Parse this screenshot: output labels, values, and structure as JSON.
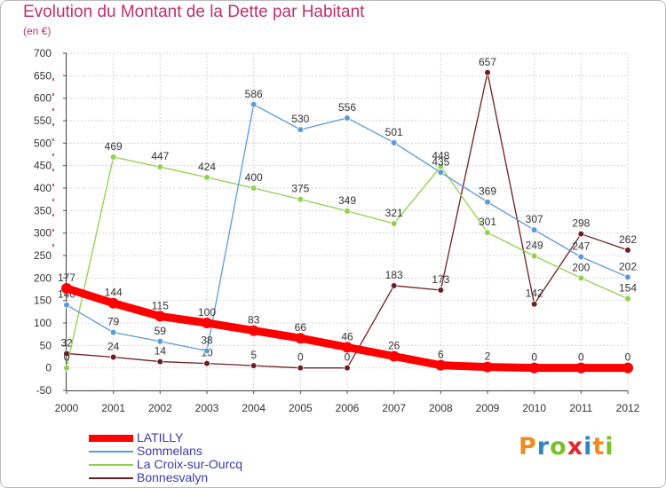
{
  "title": "Evolution du Montant de la Dette par Habitant",
  "subtitle": "(en €)",
  "brand": {
    "text": "Proxiti",
    "colors": [
      "#f08b22",
      "#2e86c1",
      "#7cbf28",
      "#e3272e",
      "#2e86c1",
      "#f08b22",
      "#7cbf28"
    ]
  },
  "chart_data": {
    "type": "line",
    "title": "Evolution du Montant de la Dette par Habitant",
    "subtitle": "(en €)",
    "x": [
      "2000",
      "2001",
      "2002",
      "2003",
      "2004",
      "2005",
      "2006",
      "2007",
      "2008",
      "2009",
      "2010",
      "2011",
      "2012"
    ],
    "ylim": [
      -50,
      700
    ],
    "yticks": [
      -50,
      0,
      50,
      100,
      150,
      200,
      250,
      300,
      350,
      400,
      450,
      500,
      550,
      600,
      650,
      700
    ],
    "grid": true,
    "legend_position": "bottom-left",
    "series": [
      {
        "name": "LATILLY",
        "color": "#ff0000",
        "values": [
          177,
          144,
          115,
          100,
          83,
          66,
          46,
          26,
          6,
          2,
          0,
          0,
          0
        ],
        "labels": [
          "177",
          "144",
          "115",
          "100",
          "83",
          "66",
          "46",
          "26",
          "6",
          "2",
          "0",
          "0",
          "0"
        ]
      },
      {
        "name": "Sommelans",
        "color": "#5b9bd5",
        "values": [
          140,
          79,
          59,
          38,
          586,
          530,
          556,
          501,
          435,
          369,
          307,
          247,
          202
        ],
        "labels": [
          "140",
          "79",
          "59",
          "38",
          "586",
          "530",
          "556",
          "501",
          "435",
          "369",
          "307",
          "247",
          "202"
        ]
      },
      {
        "name": "La Croix-sur-Ourcq",
        "color": "#8fd14f",
        "values": [
          0,
          469,
          447,
          424,
          400,
          375,
          349,
          321,
          448,
          301,
          249,
          200,
          154
        ],
        "labels": [
          "0",
          "469",
          "447",
          "424",
          "400",
          "375",
          "349",
          "321",
          "448",
          "301",
          "249",
          "200",
          "154"
        ]
      },
      {
        "name": "Bonnesvalyn",
        "color": "#6b1f22",
        "values": [
          32,
          24,
          14,
          10,
          5,
          0,
          0,
          183,
          173,
          657,
          142,
          298,
          262
        ],
        "labels": [
          "32",
          "24",
          "14",
          "10",
          "5",
          "0",
          "0",
          "183",
          "173",
          "657",
          "142",
          "298",
          "262"
        ]
      }
    ]
  }
}
